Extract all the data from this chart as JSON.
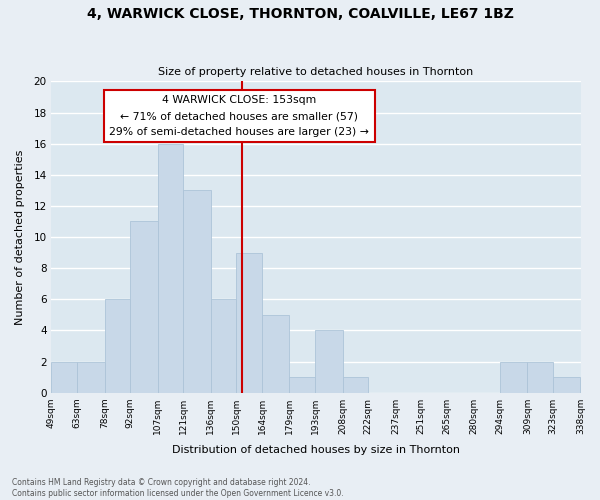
{
  "title": "4, WARWICK CLOSE, THORNTON, COALVILLE, LE67 1BZ",
  "subtitle": "Size of property relative to detached houses in Thornton",
  "xlabel": "Distribution of detached houses by size in Thornton",
  "ylabel": "Number of detached properties",
  "bin_edges": [
    49,
    63,
    78,
    92,
    107,
    121,
    136,
    150,
    164,
    179,
    193,
    208,
    222,
    237,
    251,
    265,
    280,
    294,
    309,
    323,
    338
  ],
  "bin_labels": [
    "49sqm",
    "63sqm",
    "78sqm",
    "92sqm",
    "107sqm",
    "121sqm",
    "136sqm",
    "150sqm",
    "164sqm",
    "179sqm",
    "193sqm",
    "208sqm",
    "222sqm",
    "237sqm",
    "251sqm",
    "265sqm",
    "280sqm",
    "294sqm",
    "309sqm",
    "323sqm",
    "338sqm"
  ],
  "counts": [
    2,
    2,
    6,
    11,
    16,
    13,
    6,
    9,
    5,
    1,
    4,
    1,
    0,
    0,
    0,
    0,
    0,
    2,
    2,
    1
  ],
  "bar_color": "#c8d8e8",
  "bar_edge_color": "#adc4d8",
  "vline_x": 153,
  "vline_color": "#cc0000",
  "annotation_title": "4 WARWICK CLOSE: 153sqm",
  "annotation_line1": "← 71% of detached houses are smaller (57)",
  "annotation_line2": "29% of semi-detached houses are larger (23) →",
  "annotation_box_color": "#ffffff",
  "annotation_box_edge": "#cc0000",
  "ylim": [
    0,
    20
  ],
  "yticks": [
    0,
    2,
    4,
    6,
    8,
    10,
    12,
    14,
    16,
    18,
    20
  ],
  "bg_color": "#dce8f0",
  "fig_bg_color": "#e8eef4",
  "grid_color": "#ffffff",
  "footer_line1": "Contains HM Land Registry data © Crown copyright and database right 2024.",
  "footer_line2": "Contains public sector information licensed under the Open Government Licence v3.0."
}
